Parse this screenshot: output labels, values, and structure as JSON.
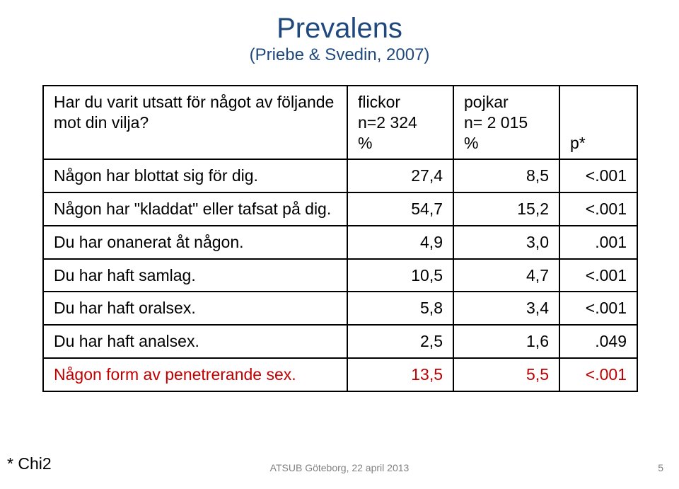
{
  "title": "Prevalens",
  "subtitle": "(Priebe & Svedin, 2007)",
  "table": {
    "columns": [
      "c0",
      "c1",
      "c2",
      "c3"
    ],
    "header": {
      "rowLabel": "Har du varit utsatt för något av följande mot din vilja?",
      "col1_l1": "flickor",
      "col1_l2": "n=2 324",
      "col1_l3": "%",
      "col2_l1": "pojkar",
      "col2_l2": "n= 2 015",
      "col2_l3": "%",
      "col3": "p*"
    },
    "rows": [
      {
        "label": "Någon har blottat sig för dig.",
        "v1": "27,4",
        "v2": "8,5",
        "p": "<.001",
        "red": false
      },
      {
        "label": "Någon har \"kladdat\" eller tafsat på dig.",
        "v1": "54,7",
        "v2": "15,2",
        "p": "<.001",
        "red": false
      },
      {
        "label": "Du har onanerat åt någon.",
        "v1": "4,9",
        "v2": "3,0",
        "p": ".001",
        "red": false
      },
      {
        "label": "Du har haft samlag.",
        "v1": "10,5",
        "v2": "4,7",
        "p": "<.001",
        "red": false
      },
      {
        "label": "Du har haft oralsex.",
        "v1": "5,8",
        "v2": "3,4",
        "p": "<.001",
        "red": false
      },
      {
        "label": "Du har haft analsex.",
        "v1": "2,5",
        "v2": "1,6",
        "p": ".049",
        "red": false
      },
      {
        "label": "Någon form av penetrerande sex.",
        "v1": "13,5",
        "v2": "5,5",
        "p": "<.001",
        "red": true
      }
    ]
  },
  "footnote": "* Chi2",
  "footer": {
    "center": "ATSUB Göteborg, 22 april 2013",
    "page": "5"
  },
  "colors": {
    "title": "#1f497d",
    "text": "#000000",
    "red": "#c00000",
    "footer": "#808080",
    "border": "#000000",
    "background": "#ffffff"
  },
  "fonts": {
    "title_size_pt": 30,
    "subtitle_size_pt": 18,
    "body_size_pt": 17,
    "footer_size_pt": 10
  }
}
